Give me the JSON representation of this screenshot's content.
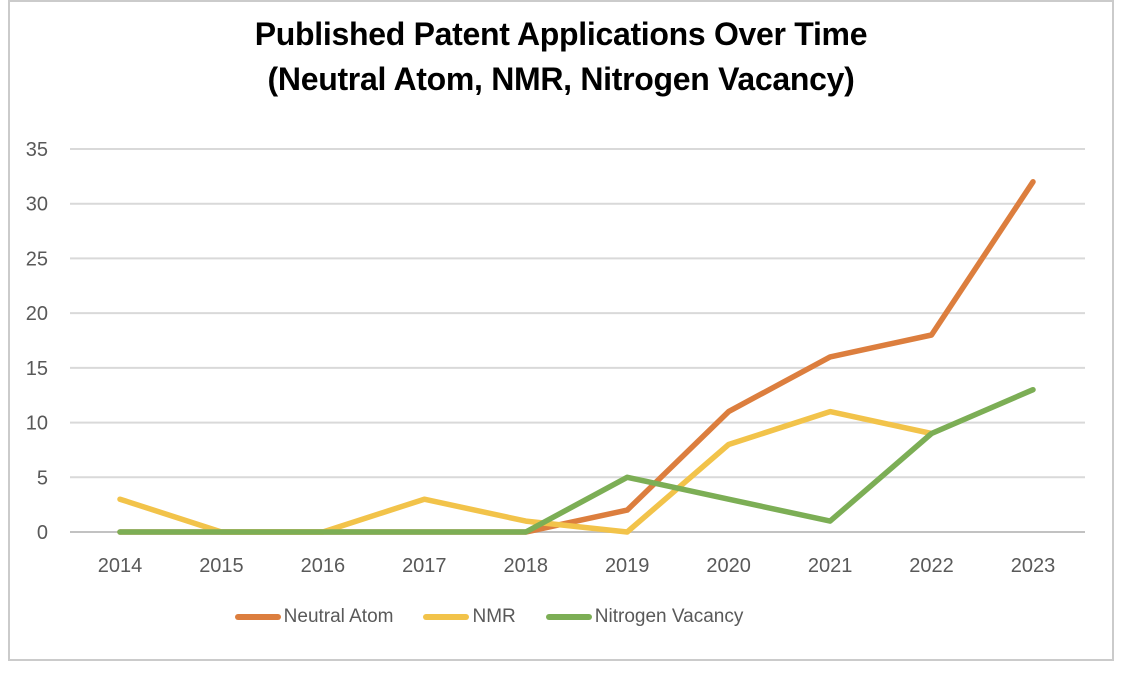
{
  "chart_data": {
    "type": "line",
    "title": "Published Patent Applications Over Time (Neutral Atom, NMR, Nitrogen Vacancy)",
    "title_line1": "Published Patent Applications Over Time",
    "title_line2": "(Neutral Atom, NMR, Nitrogen Vacancy)",
    "categories": [
      "2014",
      "2015",
      "2016",
      "2017",
      "2018",
      "2019",
      "2020",
      "2021",
      "2022",
      "2023"
    ],
    "series": [
      {
        "name": "Neutral Atom",
        "color": "#DC7E3E",
        "values": [
          0,
          0,
          0,
          0,
          0,
          2,
          11,
          16,
          18,
          32
        ]
      },
      {
        "name": "NMR",
        "color": "#F2C34A",
        "values": [
          3,
          0,
          0,
          3,
          1,
          0,
          8,
          11,
          9,
          null
        ]
      },
      {
        "name": "Nitrogen Vacancy",
        "color": "#7CAE55",
        "values": [
          0,
          0,
          0,
          0,
          0,
          5,
          3,
          1,
          9,
          13
        ]
      }
    ],
    "xlabel": "",
    "ylabel": "",
    "ylim": [
      0,
      35
    ],
    "ytick_step": 5,
    "yticks": [
      0,
      5,
      10,
      15,
      20,
      25,
      30,
      35
    ],
    "grid": true,
    "legend_position": "bottom"
  },
  "colors": {
    "background": "#FFFFFF",
    "frame_border": "#CBCBCB",
    "gridline": "#D9D9D9",
    "axis_line": "#C2C2C2",
    "tick_label": "#595959",
    "title_text": "#000000"
  }
}
